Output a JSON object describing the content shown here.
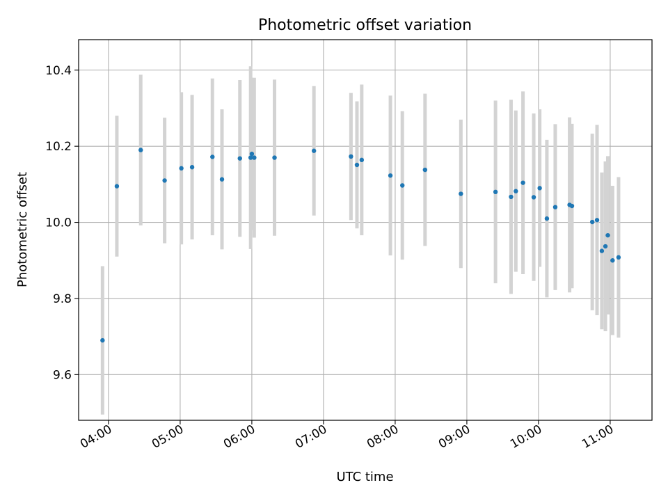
{
  "chart_data": {
    "type": "scatter",
    "title": "Photometric offset variation",
    "xlabel": "UTC time",
    "ylabel": "Photometric offset",
    "x_ticks": [
      "04:00",
      "05:00",
      "06:00",
      "07:00",
      "08:00",
      "09:00",
      "10:00",
      "11:00"
    ],
    "y_ticks": [
      "9.6",
      "9.8",
      "10.0",
      "10.2",
      "10.4"
    ],
    "xlim": [
      "03:35",
      "11:35"
    ],
    "ylim": [
      9.48,
      10.48
    ],
    "grid": true,
    "marker_color": "#1f77b4",
    "errorbar_color": "#d3d3d3",
    "points": [
      {
        "t": "03:55",
        "y": 9.69,
        "err": 0.195
      },
      {
        "t": "04:07",
        "y": 10.095,
        "err": 0.185
      },
      {
        "t": "04:27",
        "y": 10.19,
        "err": 0.198
      },
      {
        "t": "04:47",
        "y": 10.11,
        "err": 0.165
      },
      {
        "t": "05:01",
        "y": 10.142,
        "err": 0.2
      },
      {
        "t": "05:10",
        "y": 10.145,
        "err": 0.19
      },
      {
        "t": "05:27",
        "y": 10.172,
        "err": 0.206
      },
      {
        "t": "05:35",
        "y": 10.113,
        "err": 0.184
      },
      {
        "t": "05:50",
        "y": 10.168,
        "err": 0.206
      },
      {
        "t": "05:59",
        "y": 10.17,
        "err": 0.24
      },
      {
        "t": "06:00",
        "y": 10.18,
        "err": 0.2
      },
      {
        "t": "06:02",
        "y": 10.17,
        "err": 0.21
      },
      {
        "t": "06:19",
        "y": 10.17,
        "err": 0.205
      },
      {
        "t": "06:52",
        "y": 10.188,
        "err": 0.17
      },
      {
        "t": "07:23",
        "y": 10.173,
        "err": 0.167
      },
      {
        "t": "07:28",
        "y": 10.151,
        "err": 0.167
      },
      {
        "t": "07:32",
        "y": 10.164,
        "err": 0.198
      },
      {
        "t": "07:56",
        "y": 10.123,
        "err": 0.21
      },
      {
        "t": "08:06",
        "y": 10.097,
        "err": 0.195
      },
      {
        "t": "08:25",
        "y": 10.138,
        "err": 0.2
      },
      {
        "t": "08:55",
        "y": 10.075,
        "err": 0.195
      },
      {
        "t": "09:24",
        "y": 10.08,
        "err": 0.24
      },
      {
        "t": "09:37",
        "y": 10.067,
        "err": 0.255
      },
      {
        "t": "09:41",
        "y": 10.082,
        "err": 0.212
      },
      {
        "t": "09:47",
        "y": 10.104,
        "err": 0.24
      },
      {
        "t": "09:56",
        "y": 10.066,
        "err": 0.22
      },
      {
        "t": "10:01",
        "y": 10.09,
        "err": 0.207
      },
      {
        "t": "10:07",
        "y": 10.01,
        "err": 0.207
      },
      {
        "t": "10:14",
        "y": 10.04,
        "err": 0.218
      },
      {
        "t": "10:26",
        "y": 10.046,
        "err": 0.23
      },
      {
        "t": "10:28",
        "y": 10.043,
        "err": 0.216
      },
      {
        "t": "10:45",
        "y": 10.001,
        "err": 0.232
      },
      {
        "t": "10:49",
        "y": 10.006,
        "err": 0.25
      },
      {
        "t": "10:53",
        "y": 9.925,
        "err": 0.206
      },
      {
        "t": "10:56",
        "y": 9.937,
        "err": 0.223
      },
      {
        "t": "10:58",
        "y": 9.966,
        "err": 0.208
      },
      {
        "t": "11:02",
        "y": 9.9,
        "err": 0.196
      },
      {
        "t": "11:07",
        "y": 9.908,
        "err": 0.211
      }
    ]
  }
}
